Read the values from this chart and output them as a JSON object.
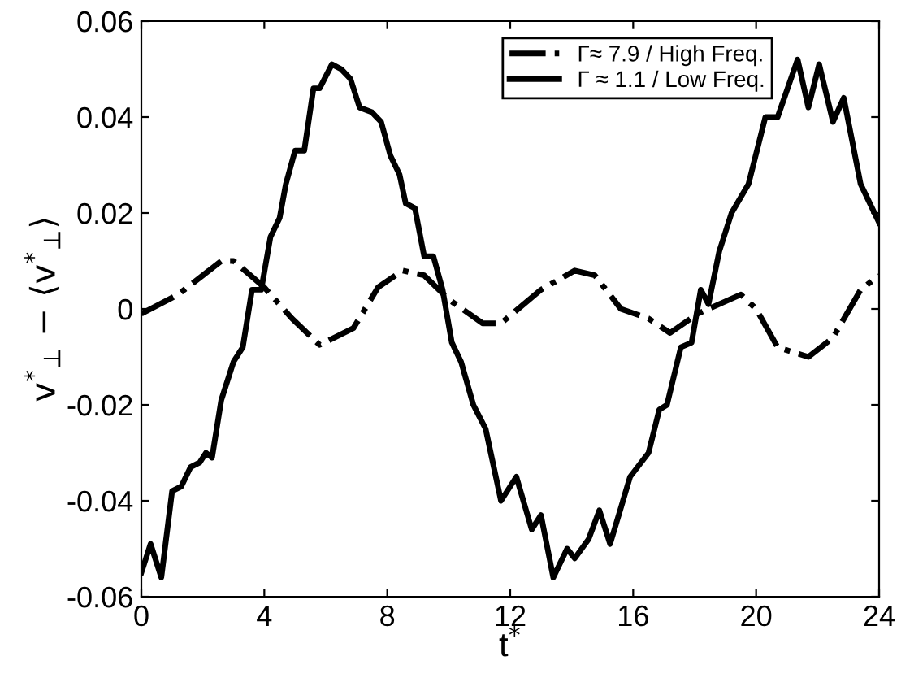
{
  "chart_data": {
    "type": "line",
    "xlabel": "t$^{*}$",
    "ylabel": "v$^{*}$$_{⊥}$ − ⟨v$^{*}$$_{⊥}$⟩",
    "xlim": [
      0,
      24
    ],
    "xticks": [
      0,
      4,
      8,
      12,
      16,
      20,
      24
    ],
    "ylim": [
      -0.06,
      0.06
    ],
    "yticks": [
      -0.06,
      -0.04,
      -0.02,
      0,
      0.02,
      0.04,
      0.06
    ],
    "legend": "top right",
    "grid": false,
    "series": [
      {
        "name": "Γ≈ 7.9 / High Freq.",
        "color": "#000000",
        "line_style": "dashdot",
        "x": [
          0,
          1.2,
          2.6,
          3.0,
          4.0,
          4.9,
          5.8,
          6.9,
          7.7,
          8.5,
          9.2,
          10.0,
          11.1,
          11.7,
          13.0,
          14.1,
          14.75,
          15.6,
          16.5,
          17.2,
          18.1,
          19.5,
          20.0,
          20.7,
          21.7,
          22.5,
          23.4,
          24
        ],
        "values": [
          -0.001,
          0.003,
          0.01,
          0.01,
          0.0045,
          -0.002,
          -0.0075,
          -0.004,
          0.0045,
          0.008,
          0.007,
          0.002,
          -0.003,
          -0.003,
          0.004,
          0.008,
          0.007,
          0,
          -0.002,
          -0.005,
          -0.001,
          0.003,
          0,
          -0.008,
          -0.01,
          -0.006,
          0.004,
          0.007
        ]
      },
      {
        "name": "Γ ≈ 1.1 / Low Freq.",
        "color": "#000000",
        "line_style": "solid",
        "x": [
          0,
          0.3,
          0.65,
          1.0,
          1.3,
          1.6,
          1.9,
          2.1,
          2.3,
          2.6,
          3.0,
          3.3,
          3.6,
          3.9,
          4.2,
          4.5,
          4.7,
          5.0,
          5.3,
          5.6,
          5.8,
          6.2,
          6.5,
          6.8,
          7.1,
          7.5,
          7.8,
          8.1,
          8.4,
          8.6,
          8.9,
          9.2,
          9.5,
          9.8,
          10.1,
          10.4,
          10.8,
          11.2,
          11.7,
          12.2,
          12.7,
          13.0,
          13.4,
          13.85,
          14.1,
          14.55,
          14.9,
          15.25,
          15.9,
          16.5,
          16.85,
          17.1,
          17.55,
          17.9,
          18.2,
          18.45,
          18.8,
          19.2,
          19.75,
          20.3,
          20.7,
          21.35,
          21.7,
          22.05,
          22.5,
          22.85,
          23.4,
          24
        ],
        "values": [
          -0.055,
          -0.049,
          -0.056,
          -0.038,
          -0.037,
          -0.033,
          -0.032,
          -0.03,
          -0.031,
          -0.019,
          -0.011,
          -0.008,
          0.004,
          0.004,
          0.015,
          0.019,
          0.026,
          0.033,
          0.033,
          0.046,
          0.046,
          0.051,
          0.05,
          0.048,
          0.042,
          0.041,
          0.039,
          0.032,
          0.028,
          0.022,
          0.021,
          0.011,
          0.011,
          0.004,
          -0.007,
          -0.011,
          -0.02,
          -0.025,
          -0.04,
          -0.035,
          -0.046,
          -0.043,
          -0.056,
          -0.05,
          -0.052,
          -0.048,
          -0.042,
          -0.049,
          -0.035,
          -0.03,
          -0.021,
          -0.02,
          -0.008,
          -0.007,
          0.004,
          0.001,
          0.012,
          0.02,
          0.026,
          0.04,
          0.04,
          0.052,
          0.042,
          0.051,
          0.039,
          0.044,
          0.026,
          0.018
        ]
      }
    ]
  }
}
